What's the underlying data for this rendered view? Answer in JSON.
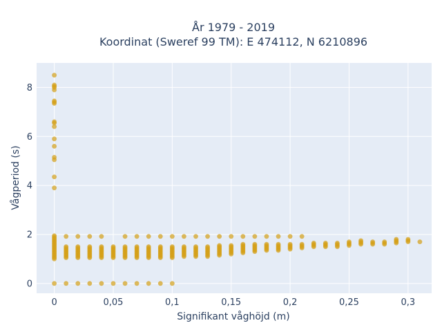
{
  "chart_data": {
    "type": "scatter",
    "title": "År 1979 - 2019",
    "subtitle": "Koordinat (Sweref 99 TM): E 474112, N 6210896",
    "xlabel": "Signifikant våghöjd (m)",
    "ylabel": "Vågperiod (s)",
    "xlim": [
      -0.015,
      0.32
    ],
    "ylim": [
      -0.4,
      9.0
    ],
    "x_ticks": [
      0,
      0.05,
      0.1,
      0.15,
      0.2,
      0.25,
      0.3
    ],
    "x_tick_labels": [
      "0",
      "0,05",
      "0,1",
      "0,15",
      "0,2",
      "0,25",
      "0,3"
    ],
    "y_ticks": [
      0,
      2,
      4,
      6,
      8
    ],
    "y_tick_labels": [
      "0",
      "2",
      "4",
      "6",
      "8"
    ],
    "grid": true,
    "legend": "none",
    "colors": {
      "marker": "#d4a017",
      "background": "#e5ecf6",
      "grid": "#ffffff",
      "text": "#2a3f5f"
    },
    "points": {
      "zero_x_high_periods": [
        3.9,
        4.35,
        5.05,
        5.15,
        5.6,
        5.9,
        6.4,
        6.55,
        6.6,
        7.35,
        7.4,
        7.45,
        7.9,
        8.0,
        8.05,
        8.1,
        8.5
      ],
      "zero_x_band": [
        1.0,
        1.05,
        1.1,
        1.15,
        1.2,
        1.25,
        1.3,
        1.35,
        1.4,
        1.45,
        1.5,
        1.55,
        1.6,
        1.65,
        1.7,
        1.75,
        1.8,
        1.85,
        1.9,
        1.95
      ],
      "zero_y_x": [
        0,
        0.01,
        0.02,
        0.03,
        0.04,
        0.05,
        0.06,
        0.07,
        0.08,
        0.09,
        0.1
      ],
      "upper_row_y": 1.92,
      "upper_row_x": [
        0.01,
        0.02,
        0.03,
        0.04,
        0.06,
        0.07,
        0.08,
        0.09,
        0.1,
        0.11,
        0.12,
        0.13,
        0.14,
        0.15,
        0.16,
        0.17,
        0.18,
        0.19,
        0.2,
        0.21
      ],
      "columns": [
        {
          "x": 0.01,
          "y_min": 1.05,
          "y_max": 1.5
        },
        {
          "x": 0.02,
          "y_min": 1.05,
          "y_max": 1.5
        },
        {
          "x": 0.03,
          "y_min": 1.05,
          "y_max": 1.5
        },
        {
          "x": 0.04,
          "y_min": 1.05,
          "y_max": 1.5
        },
        {
          "x": 0.05,
          "y_min": 1.05,
          "y_max": 1.5
        },
        {
          "x": 0.06,
          "y_min": 1.05,
          "y_max": 1.5
        },
        {
          "x": 0.07,
          "y_min": 1.05,
          "y_max": 1.5
        },
        {
          "x": 0.08,
          "y_min": 1.05,
          "y_max": 1.5
        },
        {
          "x": 0.09,
          "y_min": 1.05,
          "y_max": 1.5
        },
        {
          "x": 0.1,
          "y_min": 1.05,
          "y_max": 1.5
        },
        {
          "x": 0.11,
          "y_min": 1.1,
          "y_max": 1.5
        },
        {
          "x": 0.12,
          "y_min": 1.1,
          "y_max": 1.5
        },
        {
          "x": 0.13,
          "y_min": 1.1,
          "y_max": 1.5
        },
        {
          "x": 0.14,
          "y_min": 1.15,
          "y_max": 1.55
        },
        {
          "x": 0.15,
          "y_min": 1.2,
          "y_max": 1.55
        },
        {
          "x": 0.16,
          "y_min": 1.25,
          "y_max": 1.6
        },
        {
          "x": 0.17,
          "y_min": 1.3,
          "y_max": 1.6
        },
        {
          "x": 0.18,
          "y_min": 1.35,
          "y_max": 1.6
        },
        {
          "x": 0.19,
          "y_min": 1.35,
          "y_max": 1.6
        },
        {
          "x": 0.2,
          "y_min": 1.4,
          "y_max": 1.6
        },
        {
          "x": 0.21,
          "y_min": 1.45,
          "y_max": 1.6
        },
        {
          "x": 0.22,
          "y_min": 1.5,
          "y_max": 1.65
        },
        {
          "x": 0.23,
          "y_min": 1.5,
          "y_max": 1.65
        },
        {
          "x": 0.24,
          "y_min": 1.5,
          "y_max": 1.65
        },
        {
          "x": 0.25,
          "y_min": 1.55,
          "y_max": 1.7
        },
        {
          "x": 0.26,
          "y_min": 1.6,
          "y_max": 1.75
        },
        {
          "x": 0.27,
          "y_min": 1.6,
          "y_max": 1.7
        },
        {
          "x": 0.28,
          "y_min": 1.6,
          "y_max": 1.7
        },
        {
          "x": 0.29,
          "y_min": 1.65,
          "y_max": 1.8
        },
        {
          "x": 0.3,
          "y_min": 1.7,
          "y_max": 1.8
        },
        {
          "x": 0.31,
          "y_min": 1.7,
          "y_max": 1.7
        }
      ]
    }
  }
}
